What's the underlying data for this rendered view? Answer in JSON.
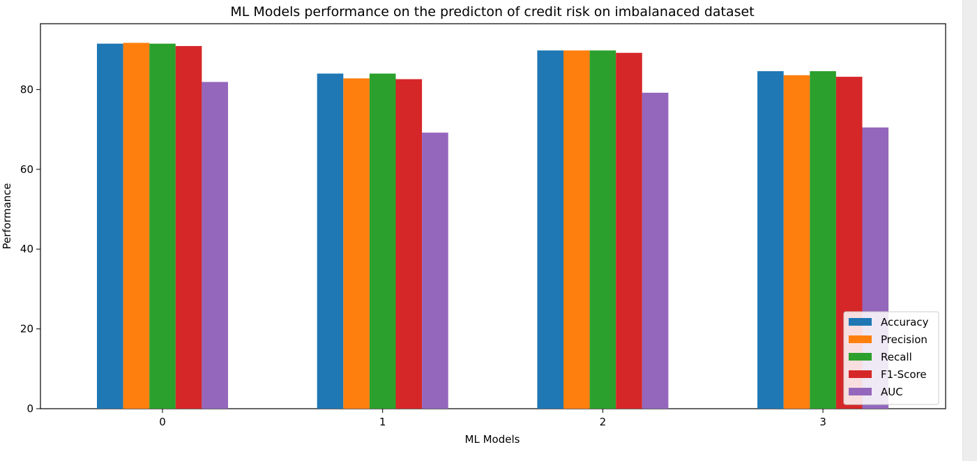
{
  "chart_data": {
    "type": "bar",
    "title": "ML Models performance on the predicton of credit risk on imbalanaced dataset",
    "xlabel": "ML Models",
    "ylabel": "Performance",
    "categories": [
      "0",
      "1",
      "2",
      "3"
    ],
    "ylim": [
      0,
      96.5
    ],
    "yticks": [
      0,
      20,
      40,
      60,
      80
    ],
    "grid": false,
    "legend_position": "lower-right",
    "series": [
      {
        "name": "Accuracy",
        "color": "#1f77b4",
        "values": [
          91.5,
          84.0,
          89.8,
          84.6
        ]
      },
      {
        "name": "Precision",
        "color": "#ff7f0e",
        "values": [
          91.7,
          82.8,
          89.8,
          83.6
        ]
      },
      {
        "name": "Recall",
        "color": "#2ca02c",
        "values": [
          91.5,
          84.0,
          89.8,
          84.6
        ]
      },
      {
        "name": "F1-Score",
        "color": "#d62728",
        "values": [
          90.9,
          82.6,
          89.2,
          83.2
        ]
      },
      {
        "name": "AUC",
        "color": "#9467bd",
        "values": [
          81.9,
          69.2,
          79.2,
          70.5
        ]
      }
    ]
  }
}
